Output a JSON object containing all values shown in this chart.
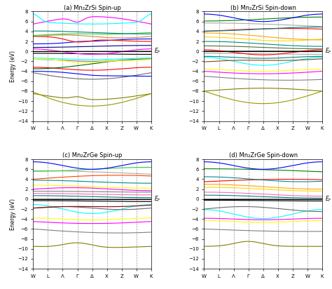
{
  "titles": [
    "(a) Mn₂ZrSi Spin-up",
    "(b) Mn₂ZrSi Spin-down",
    "(c) Mn₂ZrGe Spin-up",
    "(d) Mn₂ZrGe Spin-down"
  ],
  "xlabel_points": [
    "W",
    "L",
    "Λ",
    "Γ",
    "Δ",
    "X",
    "Z",
    "W",
    "K"
  ],
  "ylim": [
    -14,
    8
  ],
  "yticks": [
    -14,
    -12,
    -10,
    -8,
    -6,
    -4,
    -2,
    0,
    2,
    4,
    6,
    8
  ],
  "ylabel": "Energy (eV)",
  "background_color": "#ffffff",
  "lw": 0.8,
  "n_points": 200
}
